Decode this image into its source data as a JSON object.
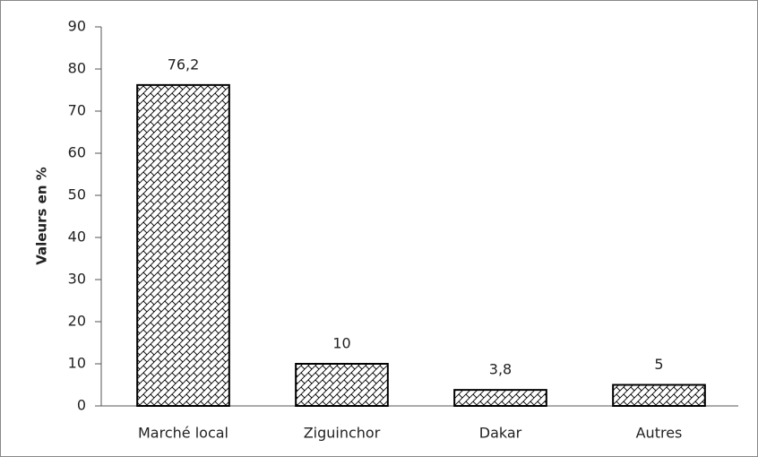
{
  "chart_data": {
    "type": "bar",
    "y_label": "Valeurs en %",
    "categories": [
      "Marché local",
      "Ziguinchor",
      "Dakar",
      "Autres"
    ],
    "values": [
      76.2,
      10,
      3.8,
      5
    ],
    "value_labels": [
      "76,2",
      "10",
      "3,8",
      "5"
    ],
    "color": "#000000",
    "ylim": [
      0,
      90
    ],
    "yticks": [
      0,
      10,
      20,
      30,
      40,
      50,
      60,
      70,
      80,
      90
    ],
    "grid": false
  }
}
